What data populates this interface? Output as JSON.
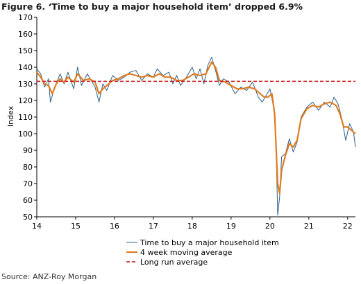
{
  "title": "Figure 6. ‘Time to buy a major household item’ dropped 6.9%",
  "source": "Source: ANZ-Roy Morgan",
  "chart_data": {
    "type": "line",
    "ylabel": "Index",
    "xlabel": "",
    "ylim": [
      50,
      170
    ],
    "yticks": [
      50,
      60,
      70,
      80,
      90,
      100,
      110,
      120,
      130,
      140,
      150,
      160,
      170
    ],
    "xlim": [
      14.0,
      22.2
    ],
    "xticks": [
      14,
      15,
      16,
      17,
      18,
      19,
      20,
      21,
      22
    ],
    "grid": false,
    "legend_position": "bottom",
    "colors": {
      "raw": "#2e5f87",
      "ma": "#e07b1f",
      "avg": "#cc1111"
    },
    "series": [
      {
        "name": "Time to buy a major household item",
        "style": "thin-line",
        "x": [
          14.0,
          14.1,
          14.2,
          14.3,
          14.35,
          14.45,
          14.6,
          14.7,
          14.8,
          14.95,
          15.05,
          15.15,
          15.3,
          15.4,
          15.5,
          15.6,
          15.7,
          15.8,
          15.95,
          16.1,
          16.25,
          16.4,
          16.55,
          16.7,
          16.85,
          17.0,
          17.1,
          17.25,
          17.4,
          17.5,
          17.6,
          17.7,
          17.85,
          18.0,
          18.1,
          18.2,
          18.3,
          18.4,
          18.5,
          18.6,
          18.7,
          18.8,
          18.95,
          19.1,
          19.25,
          19.4,
          19.55,
          19.7,
          19.8,
          19.9,
          20.0,
          20.1,
          20.15,
          20.2,
          20.25,
          20.3,
          20.4,
          20.5,
          20.6,
          20.7,
          20.8,
          20.95,
          21.1,
          21.25,
          21.4,
          21.55,
          21.65,
          21.75,
          21.85,
          21.95,
          22.05,
          22.15,
          22.2
        ],
        "y": [
          139,
          136,
          128,
          133,
          119,
          127,
          136,
          130,
          137,
          127,
          140,
          129,
          136,
          132,
          128,
          119,
          130,
          126,
          135,
          132,
          134,
          137,
          138,
          132,
          136,
          134,
          139,
          135,
          137,
          130,
          135,
          129,
          134,
          140,
          133,
          139,
          130,
          141,
          146,
          138,
          129,
          133,
          131,
          124,
          128,
          126,
          131,
          122,
          119,
          123,
          127,
          115,
          100,
          51,
          62,
          86,
          88,
          97,
          89,
          95,
          110,
          116,
          119,
          114,
          119,
          116,
          122,
          118,
          109,
          96,
          106,
          101,
          92
        ]
      },
      {
        "name": "4 week moving average",
        "style": "thick-line",
        "x": [
          14.0,
          14.1,
          14.2,
          14.3,
          14.4,
          14.5,
          14.6,
          14.7,
          14.8,
          14.95,
          15.05,
          15.2,
          15.35,
          15.5,
          15.6,
          15.7,
          15.8,
          15.95,
          16.1,
          16.25,
          16.4,
          16.55,
          16.7,
          16.85,
          17.0,
          17.15,
          17.3,
          17.45,
          17.6,
          17.75,
          17.9,
          18.05,
          18.2,
          18.35,
          18.5,
          18.6,
          18.7,
          18.85,
          19.0,
          19.15,
          19.3,
          19.45,
          19.6,
          19.75,
          19.85,
          19.95,
          20.05,
          20.12,
          20.2,
          20.25,
          20.3,
          20.4,
          20.5,
          20.6,
          20.7,
          20.8,
          20.95,
          21.1,
          21.25,
          21.4,
          21.55,
          21.7,
          21.8,
          21.9,
          22.0,
          22.1,
          22.2
        ],
        "y": [
          137,
          134,
          130,
          129,
          124,
          130,
          133,
          131,
          134,
          131,
          136,
          132,
          133,
          131,
          124,
          127,
          129,
          132,
          133,
          135,
          136,
          135,
          134,
          135,
          134,
          136,
          134,
          134,
          132,
          132,
          134,
          136,
          135,
          136,
          143,
          140,
          132,
          131,
          129,
          127,
          127,
          128,
          127,
          124,
          122,
          122,
          124,
          112,
          70,
          64,
          78,
          87,
          94,
          92,
          96,
          109,
          115,
          117,
          116,
          118,
          119,
          117,
          112,
          104,
          104,
          102,
          100
        ]
      },
      {
        "name": "Long run average",
        "style": "dashed",
        "x": [
          14.0,
          22.2
        ],
        "y": [
          131.5,
          131.5
        ]
      }
    ]
  }
}
